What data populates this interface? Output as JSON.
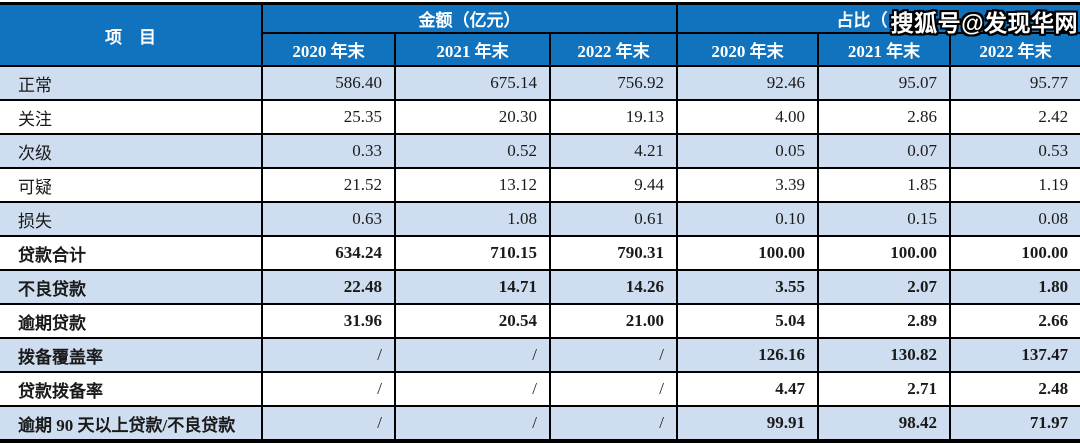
{
  "watermark": {
    "text": "搜狐号@发现华网"
  },
  "colors": {
    "header_bg": "#1173BD",
    "header_text": "#FFFFFF",
    "row_alt_bg": "#CEDEF0",
    "row_bg": "#FFFFFF",
    "border": "#000000",
    "body_text": "#1A1A1A"
  },
  "table": {
    "header": {
      "item_label": "项　目",
      "amount_group": "金额（亿元）",
      "ratio_group": "占比（%）",
      "amount_years": [
        "2020 年末",
        "2021 年末",
        "2022 年末"
      ],
      "ratio_years": [
        "2020 年末",
        "2021 年末",
        "2022 年末"
      ]
    },
    "rows": [
      {
        "label": "正常",
        "bold": false,
        "values": [
          "586.40",
          "675.14",
          "756.92",
          "92.46",
          "95.07",
          "95.77"
        ]
      },
      {
        "label": "关注",
        "bold": false,
        "values": [
          "25.35",
          "20.30",
          "19.13",
          "4.00",
          "2.86",
          "2.42"
        ]
      },
      {
        "label": "次级",
        "bold": false,
        "values": [
          "0.33",
          "0.52",
          "4.21",
          "0.05",
          "0.07",
          "0.53"
        ]
      },
      {
        "label": "可疑",
        "bold": false,
        "values": [
          "21.52",
          "13.12",
          "9.44",
          "3.39",
          "1.85",
          "1.19"
        ]
      },
      {
        "label": "损失",
        "bold": false,
        "values": [
          "0.63",
          "1.08",
          "0.61",
          "0.10",
          "0.15",
          "0.08"
        ]
      },
      {
        "label": "贷款合计",
        "bold": true,
        "values": [
          "634.24",
          "710.15",
          "790.31",
          "100.00",
          "100.00",
          "100.00"
        ]
      },
      {
        "label": "不良贷款",
        "bold": true,
        "values": [
          "22.48",
          "14.71",
          "14.26",
          "3.55",
          "2.07",
          "1.80"
        ]
      },
      {
        "label": "逾期贷款",
        "bold": true,
        "values": [
          "31.96",
          "20.54",
          "21.00",
          "5.04",
          "2.89",
          "2.66"
        ]
      },
      {
        "label": "拨备覆盖率",
        "bold": true,
        "values": [
          "/",
          "/",
          "/",
          "126.16",
          "130.82",
          "137.47"
        ]
      },
      {
        "label": "贷款拨备率",
        "bold": true,
        "values": [
          "/",
          "/",
          "/",
          "4.47",
          "2.71",
          "2.48"
        ]
      },
      {
        "label": "逾期 90 天以上贷款/不良贷款",
        "bold": true,
        "values": [
          "/",
          "/",
          "/",
          "99.91",
          "98.42",
          "71.97"
        ]
      }
    ]
  }
}
